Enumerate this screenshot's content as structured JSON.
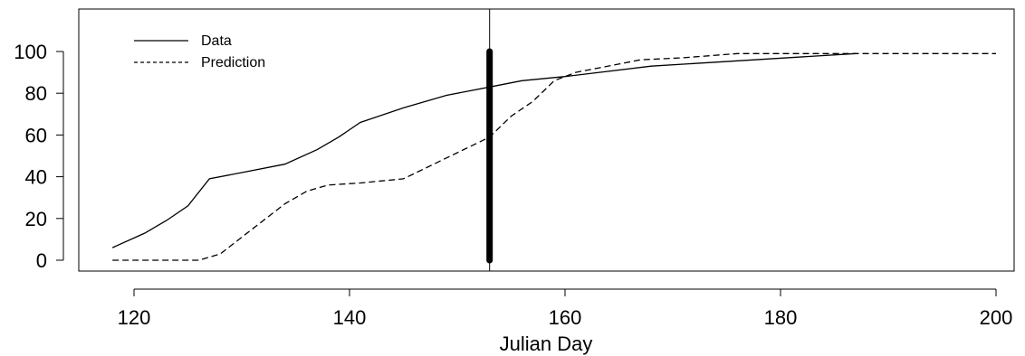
{
  "chart_data": {
    "type": "line",
    "title": "",
    "xlabel": "Julian Day",
    "ylabel": "",
    "xlim": [
      114,
      202
    ],
    "ylim": [
      -5,
      120
    ],
    "x_ticks": [
      120,
      140,
      160,
      180,
      200
    ],
    "y_ticks": [
      0,
      20,
      40,
      60,
      80,
      100
    ],
    "grid": false,
    "legend_position": "top-left",
    "series": [
      {
        "name": "Data",
        "style": "solid",
        "color": "#000000",
        "points": [
          [
            118,
            6
          ],
          [
            121,
            13
          ],
          [
            123,
            19
          ],
          [
            125,
            26
          ],
          [
            127,
            39
          ],
          [
            130,
            42
          ],
          [
            134,
            46
          ],
          [
            137,
            53
          ],
          [
            139,
            59
          ],
          [
            141,
            66
          ],
          [
            145,
            73
          ],
          [
            149,
            79
          ],
          [
            153,
            83
          ],
          [
            156,
            86
          ],
          [
            160,
            88
          ],
          [
            168,
            93
          ],
          [
            187,
            99
          ]
        ]
      },
      {
        "name": "Prediction",
        "style": "dashed",
        "color": "#000000",
        "points": [
          [
            118,
            0
          ],
          [
            126,
            0
          ],
          [
            128,
            3
          ],
          [
            131,
            15
          ],
          [
            134,
            27
          ],
          [
            136,
            33
          ],
          [
            138,
            36
          ],
          [
            141,
            37
          ],
          [
            143,
            38
          ],
          [
            145,
            39
          ],
          [
            147,
            44
          ],
          [
            149,
            49
          ],
          [
            151,
            54
          ],
          [
            153,
            59
          ],
          [
            155,
            69
          ],
          [
            157,
            76
          ],
          [
            159,
            86
          ],
          [
            161,
            90
          ],
          [
            163,
            92
          ],
          [
            165,
            94
          ],
          [
            167,
            96
          ],
          [
            171,
            97
          ],
          [
            176,
            99
          ],
          [
            200,
            99
          ]
        ]
      }
    ],
    "vertical_markers": [
      {
        "x": 153,
        "style": "thin"
      },
      {
        "x": 153,
        "y_range": [
          0,
          100
        ],
        "style": "thick"
      }
    ]
  }
}
